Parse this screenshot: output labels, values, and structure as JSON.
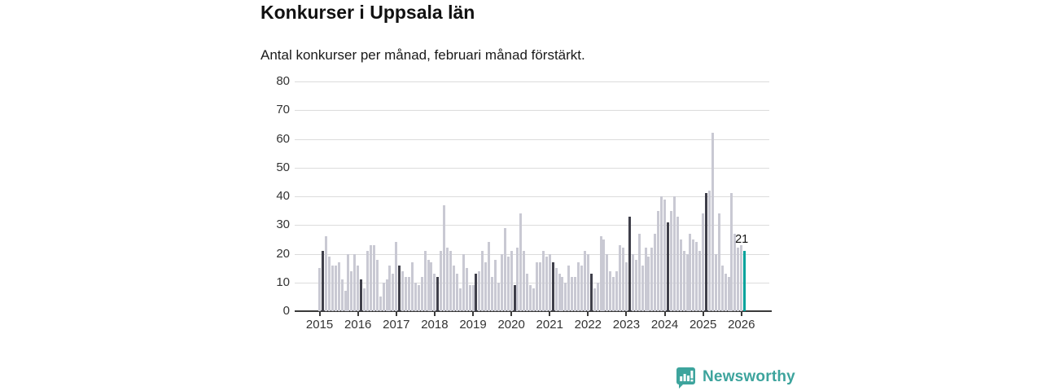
{
  "header": {
    "title": "Konkurser i Uppsala län",
    "subtitle": "Antal konkurser per månad, februari månad förstärkt."
  },
  "chart_data": {
    "type": "bar",
    "title": "Konkurser i Uppsala län",
    "subtitle": "Antal konkurser per månad, februari månad förstärkt.",
    "ylabel": "",
    "xlabel": "",
    "ylim": [
      0,
      80
    ],
    "y_ticks": [
      0,
      10,
      20,
      30,
      40,
      50,
      60,
      70,
      80
    ],
    "x_tick_labels": [
      "2015",
      "2016",
      "2017",
      "2018",
      "2019",
      "2020",
      "2021",
      "2022",
      "2023",
      "2024",
      "2025",
      "2026"
    ],
    "grid": "horizontal",
    "legend": "none",
    "start_month": "2015-01",
    "end_month": "2026-02",
    "highlight_rule": "february-bars-dark",
    "latest_bar_rule": "latest-month-teal-with-label",
    "series": [
      {
        "name": "Antal konkurser per månad",
        "values_by_year": {
          "2015": [
            15,
            21,
            26,
            19,
            16,
            16,
            17,
            11,
            7,
            20,
            14,
            20
          ],
          "2016": [
            16,
            11,
            8,
            21,
            23,
            23,
            18,
            5,
            10,
            11,
            16,
            13
          ],
          "2017": [
            24,
            16,
            14,
            12,
            12,
            17,
            10,
            9,
            12,
            21,
            18,
            17
          ],
          "2018": [
            13,
            12,
            21,
            37,
            22,
            21,
            16,
            13,
            8,
            20,
            15,
            9
          ],
          "2019": [
            9,
            13,
            14,
            21,
            17,
            24,
            12,
            18,
            10,
            20,
            29,
            19
          ],
          "2020": [
            21,
            9,
            22,
            34,
            21,
            13,
            9,
            8,
            17,
            17,
            21,
            19
          ],
          "2021": [
            20,
            17,
            15,
            13,
            12,
            10,
            16,
            12,
            12,
            17,
            16,
            21
          ],
          "2022": [
            20,
            13,
            8,
            10,
            26,
            25,
            20,
            14,
            12,
            14,
            23,
            22
          ],
          "2023": [
            17,
            33,
            20,
            18,
            27,
            16,
            22,
            19,
            22,
            27,
            35,
            40
          ],
          "2024": [
            39,
            31,
            35,
            40,
            33,
            25,
            21,
            20,
            27,
            25,
            24,
            21
          ],
          "2025": [
            34,
            41,
            42,
            62,
            20,
            34,
            16,
            13,
            12,
            41,
            27,
            22
          ],
          "2026": [
            23,
            21
          ]
        }
      }
    ],
    "last_value_label": "21",
    "colors": {
      "bar": "#c9c9d3",
      "february_bar": "#3f3f4a",
      "latest_bar": "#00a29b",
      "gridline": "#dcdcdc",
      "axis": "#3a3a3a",
      "tick_text": "#333333"
    }
  },
  "footer": {
    "brand": "Newsworthy",
    "logo_icon": "bar-chart-speech-bubble",
    "brand_color": "#3da49d"
  }
}
